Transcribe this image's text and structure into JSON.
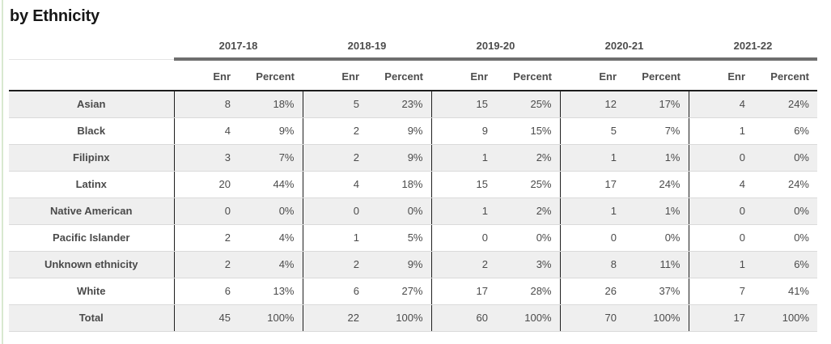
{
  "page": {
    "title": "by Ethnicity"
  },
  "colors": {
    "accent_left_border": "#d8e8d0",
    "year_rule": "#6e6e6e",
    "subheader_rule": "#1d1d1d",
    "group_divider": "#1f1f1f",
    "row_alt_bg": "#efefef",
    "row_border": "#dadada",
    "text": "#4b4b4b"
  },
  "chart_data": {
    "type": "table",
    "title": "by Ethnicity",
    "column_groups": [
      "2017-18",
      "2018-19",
      "2019-20",
      "2020-21",
      "2021-22"
    ],
    "sub_columns": {
      "enr": "Enr",
      "percent": "Percent"
    },
    "rows": [
      {
        "label": "Asian",
        "values": [
          "8",
          "18%",
          "5",
          "23%",
          "15",
          "25%",
          "12",
          "17%",
          "4",
          "24%"
        ]
      },
      {
        "label": "Black",
        "values": [
          "4",
          "9%",
          "2",
          "9%",
          "9",
          "15%",
          "5",
          "7%",
          "1",
          "6%"
        ]
      },
      {
        "label": "Filipinx",
        "values": [
          "3",
          "7%",
          "2",
          "9%",
          "1",
          "2%",
          "1",
          "1%",
          "0",
          "0%"
        ]
      },
      {
        "label": "Latinx",
        "values": [
          "20",
          "44%",
          "4",
          "18%",
          "15",
          "25%",
          "17",
          "24%",
          "4",
          "24%"
        ]
      },
      {
        "label": "Native American",
        "values": [
          "0",
          "0%",
          "0",
          "0%",
          "1",
          "2%",
          "1",
          "1%",
          "0",
          "0%"
        ]
      },
      {
        "label": "Pacific Islander",
        "values": [
          "2",
          "4%",
          "1",
          "5%",
          "0",
          "0%",
          "0",
          "0%",
          "0",
          "0%"
        ]
      },
      {
        "label": "Unknown ethnicity",
        "values": [
          "2",
          "4%",
          "2",
          "9%",
          "2",
          "3%",
          "8",
          "11%",
          "1",
          "6%"
        ]
      },
      {
        "label": "White",
        "values": [
          "6",
          "13%",
          "6",
          "27%",
          "17",
          "28%",
          "26",
          "37%",
          "7",
          "41%"
        ]
      },
      {
        "label": "Total",
        "values": [
          "45",
          "100%",
          "22",
          "100%",
          "60",
          "100%",
          "70",
          "100%",
          "17",
          "100%"
        ]
      }
    ]
  }
}
